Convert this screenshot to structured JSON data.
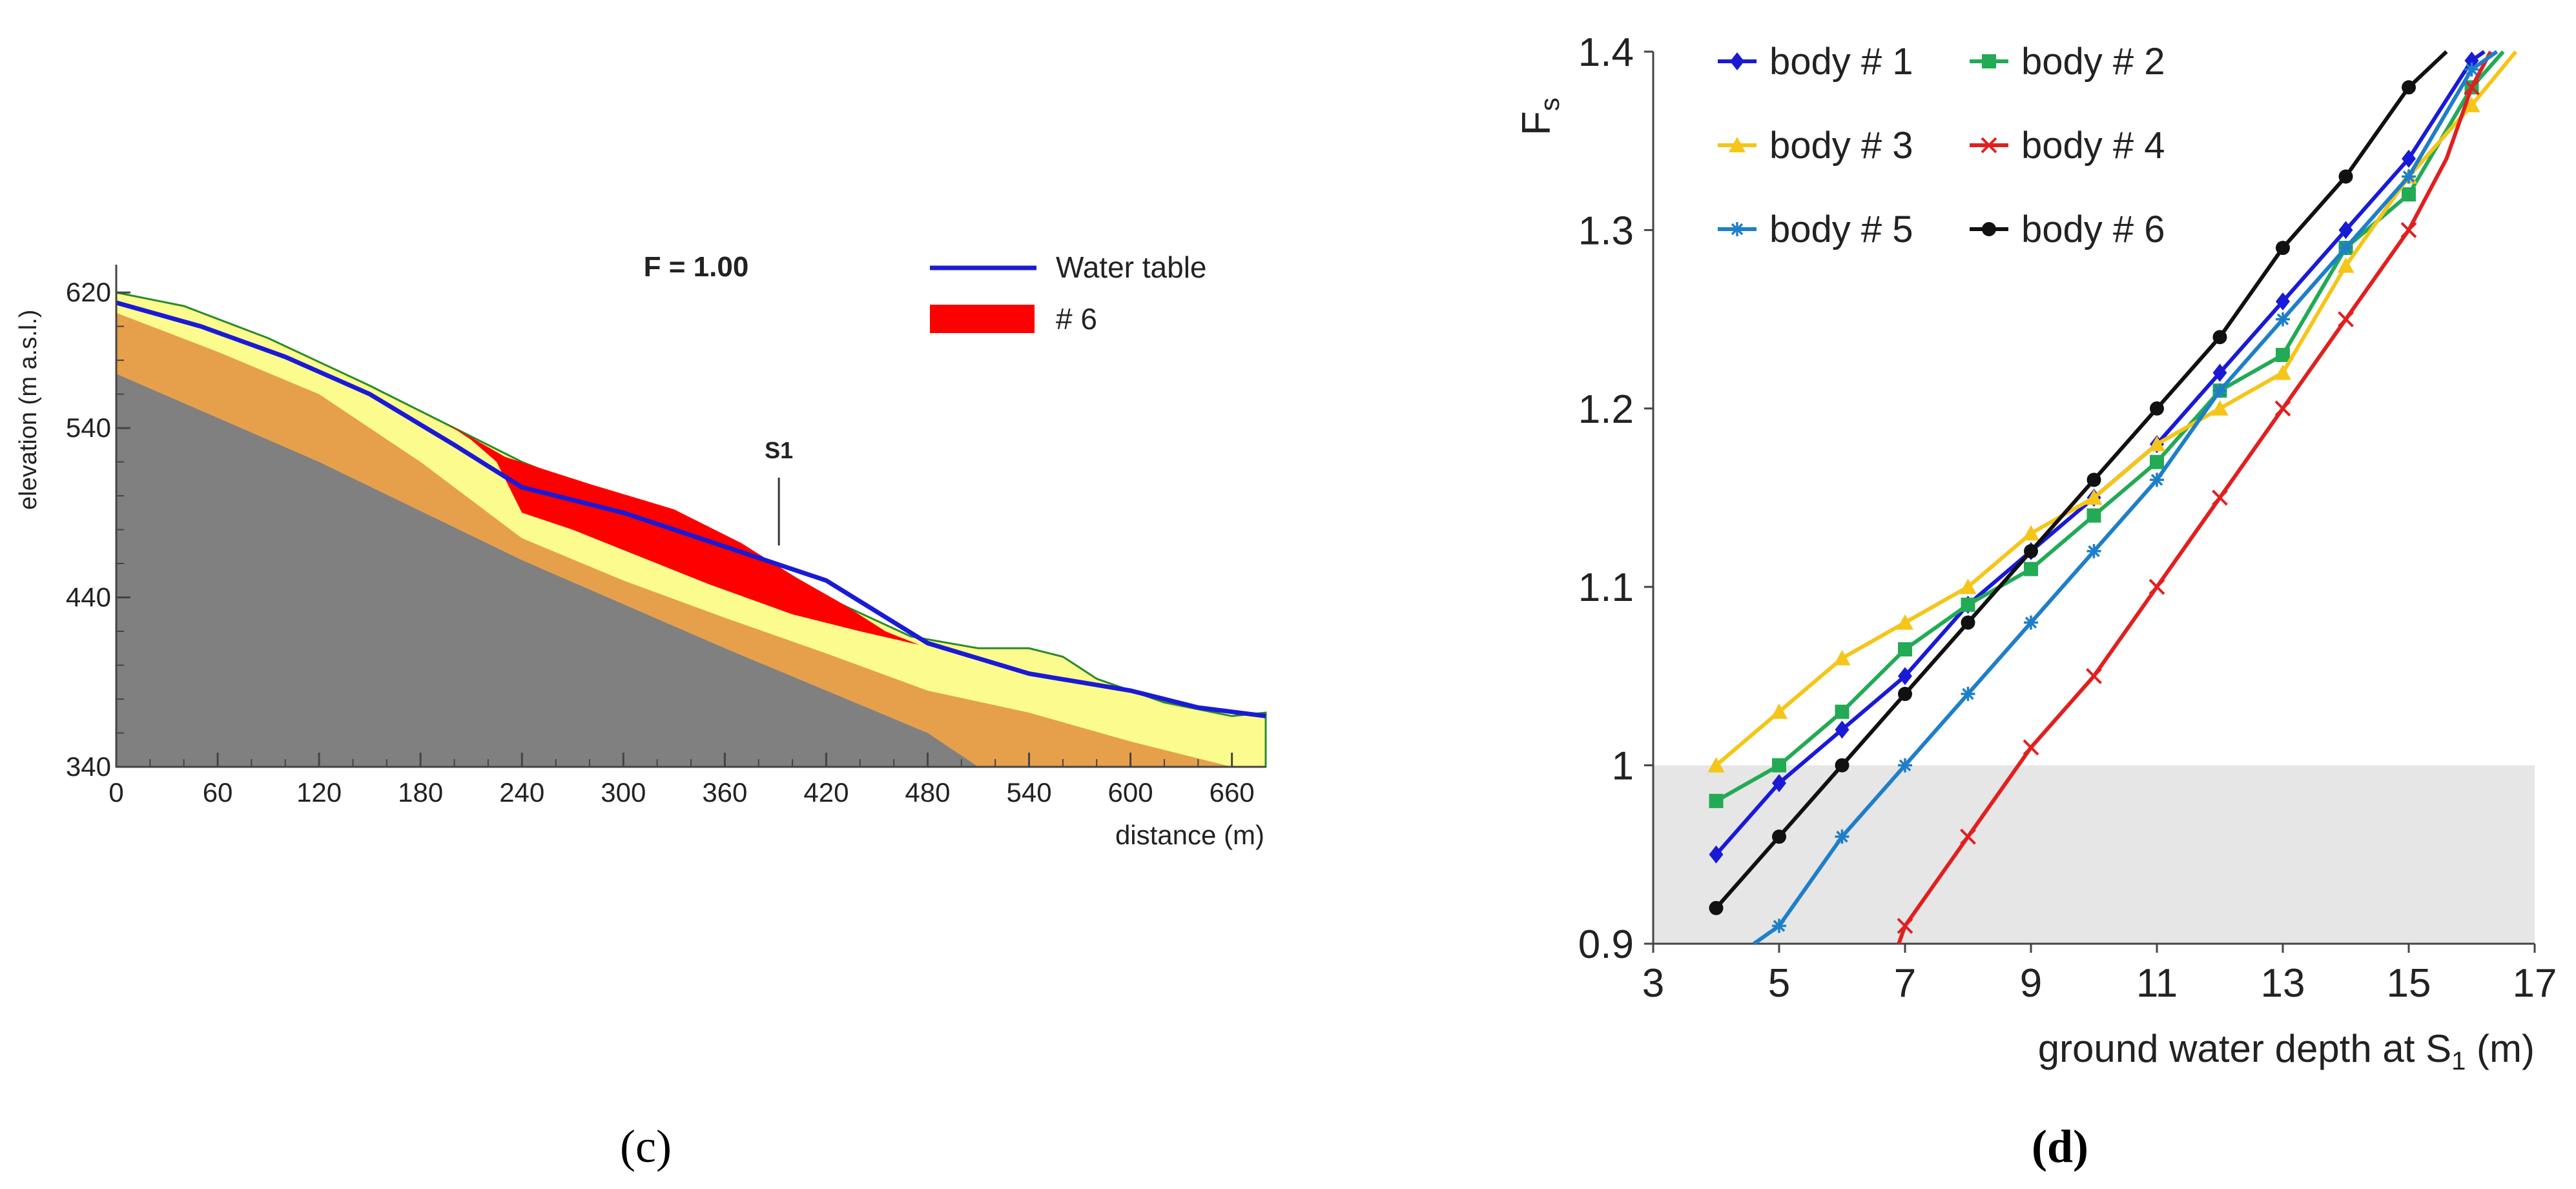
{
  "chart_data": [
    {
      "panel": "(c)",
      "type": "area",
      "annotation": "F = 1.00",
      "marker_label": "S1",
      "xlabel": "distance (m)",
      "ylabel": "elevation (m a.s.l.)",
      "xlim": [
        0,
        680
      ],
      "ylim": [
        340,
        625
      ],
      "x_ticks": [
        0,
        60,
        120,
        180,
        240,
        300,
        360,
        420,
        480,
        540,
        600,
        660
      ],
      "y_ticks": [
        340,
        440,
        540,
        620
      ],
      "s1_x": 392,
      "legend": [
        {
          "label": "Water table",
          "kind": "line",
          "color": "#1a1ad6"
        },
        {
          "label": "# 6",
          "kind": "patch",
          "color": "#ff0000"
        }
      ],
      "layers": [
        {
          "name": "ground",
          "color": "#fcfc8e",
          "top": [
            [
              0,
              620
            ],
            [
              40,
              612
            ],
            [
              90,
              593
            ],
            [
              150,
              565
            ],
            [
              200,
              540
            ],
            [
              240,
              520
            ],
            [
              290,
              500
            ],
            [
              340,
              485
            ],
            [
              380,
              465
            ],
            [
              420,
              440
            ],
            [
              470,
              417
            ],
            [
              510,
              410
            ],
            [
              540,
              410
            ],
            [
              560,
              405
            ],
            [
              580,
              392
            ],
            [
              620,
              378
            ],
            [
              660,
              370
            ],
            [
              680,
              372
            ]
          ]
        },
        {
          "name": "orange",
          "color": "#e6a04c",
          "top": [
            [
              0,
              608
            ],
            [
              60,
              585
            ],
            [
              120,
              560
            ],
            [
              180,
              520
            ],
            [
              240,
              475
            ],
            [
              300,
              450
            ],
            [
              360,
              428
            ],
            [
              420,
              407
            ],
            [
              480,
              385
            ],
            [
              540,
              372
            ],
            [
              600,
              355
            ],
            [
              640,
              345
            ],
            [
              660,
              340
            ]
          ]
        },
        {
          "name": "bedrock",
          "color": "#808080",
          "top": [
            [
              0,
              572
            ],
            [
              120,
              520
            ],
            [
              240,
              462
            ],
            [
              360,
              410
            ],
            [
              420,
              385
            ],
            [
              480,
              360
            ],
            [
              510,
              340
            ]
          ]
        },
        {
          "name": "# 6",
          "color": "#ff0000",
          "top": [
            [
              195,
              543
            ],
            [
              230,
              523
            ],
            [
              280,
              507
            ],
            [
              330,
              492
            ],
            [
              370,
              472
            ],
            [
              400,
              453
            ],
            [
              430,
              436
            ],
            [
              455,
              420
            ],
            [
              475,
              412
            ]
          ],
          "bottom": [
            [
              475,
              412
            ],
            [
              440,
              420
            ],
            [
              400,
              430
            ],
            [
              350,
              448
            ],
            [
              300,
              468
            ],
            [
              270,
              480
            ],
            [
              240,
              490
            ],
            [
              225,
              520
            ],
            [
              210,
              533
            ],
            [
              195,
              543
            ]
          ]
        }
      ],
      "water_table": {
        "x": [
          0,
          50,
          100,
          150,
          200,
          240,
          300,
          360,
          420,
          480,
          540,
          600,
          640,
          680
        ],
        "y": [
          614,
          600,
          582,
          560,
          530,
          505,
          490,
          470,
          450,
          413,
          395,
          385,
          375,
          370
        ]
      }
    },
    {
      "panel": "(d)",
      "type": "line",
      "xlabel": "ground water depth at S",
      "xlabel_sub": "1",
      "xlabel_unit": " (m)",
      "ylabel": "F",
      "ylabel_sub": "s",
      "xlim": [
        3,
        17
      ],
      "ylim": [
        0.9,
        1.4
      ],
      "x_ticks": [
        3,
        5,
        7,
        9,
        11,
        13,
        15,
        17
      ],
      "y_ticks": [
        "0.9",
        "1",
        "1.1",
        "1.2",
        "1.3",
        "1.4"
      ],
      "y_tick_values": [
        0.9,
        1.0,
        1.1,
        1.2,
        1.3,
        1.4
      ],
      "shaded_band": [
        0.9,
        1.0
      ],
      "series": [
        {
          "name": "body # 1",
          "color": "#1a1ad6",
          "marker": "diamond",
          "x": [
            4,
            5,
            6,
            7,
            8,
            9,
            10,
            11,
            12,
            13,
            14,
            15,
            16,
            16.2
          ],
          "y": [
            0.95,
            0.99,
            1.02,
            1.05,
            1.09,
            1.12,
            1.15,
            1.18,
            1.22,
            1.26,
            1.3,
            1.34,
            1.395,
            1.405
          ]
        },
        {
          "name": "body # 2",
          "color": "#22aa55",
          "marker": "square",
          "x": [
            4,
            5,
            6,
            7,
            8,
            9,
            10,
            11,
            12,
            13,
            14,
            15,
            16,
            16.5
          ],
          "y": [
            0.98,
            1.0,
            1.03,
            1.065,
            1.09,
            1.11,
            1.14,
            1.17,
            1.21,
            1.23,
            1.29,
            1.32,
            1.38,
            1.4
          ]
        },
        {
          "name": "body # 3",
          "color": "#f5c518",
          "marker": "triangle",
          "x": [
            4,
            5,
            6,
            7,
            8,
            9,
            10,
            11,
            12,
            13,
            14,
            15,
            16,
            16.7
          ],
          "y": [
            1.0,
            1.03,
            1.06,
            1.08,
            1.1,
            1.13,
            1.15,
            1.18,
            1.2,
            1.22,
            1.28,
            1.33,
            1.37,
            1.4
          ]
        },
        {
          "name": "body # 4",
          "color": "#e02020",
          "marker": "x",
          "x": [
            6.9,
            7,
            8,
            9,
            10,
            11,
            12,
            13,
            14,
            15,
            15.6,
            16,
            16.3
          ],
          "y": [
            0.9,
            0.91,
            0.96,
            1.01,
            1.05,
            1.1,
            1.15,
            1.2,
            1.25,
            1.3,
            1.34,
            1.38,
            1.4
          ]
        },
        {
          "name": "body # 5",
          "color": "#1e7fc8",
          "marker": "star",
          "x": [
            4.6,
            5,
            6,
            7,
            8,
            9,
            10,
            11,
            12,
            13,
            14,
            15,
            16,
            16.4
          ],
          "y": [
            0.9,
            0.91,
            0.96,
            1.0,
            1.04,
            1.08,
            1.12,
            1.16,
            1.21,
            1.25,
            1.29,
            1.33,
            1.39,
            1.4
          ]
        },
        {
          "name": "body # 6",
          "color": "#111111",
          "marker": "circle",
          "x": [
            4,
            5,
            6,
            7,
            8,
            9,
            10,
            11,
            12,
            13,
            14,
            15,
            15.6
          ],
          "y": [
            0.92,
            0.96,
            1.0,
            1.04,
            1.08,
            1.12,
            1.16,
            1.2,
            1.24,
            1.29,
            1.33,
            1.38,
            1.4
          ]
        }
      ]
    }
  ],
  "captions": {
    "left": "(c)",
    "right": "(d)"
  },
  "colors": {
    "axis": "#444444",
    "shade": "#e6e6e6"
  }
}
